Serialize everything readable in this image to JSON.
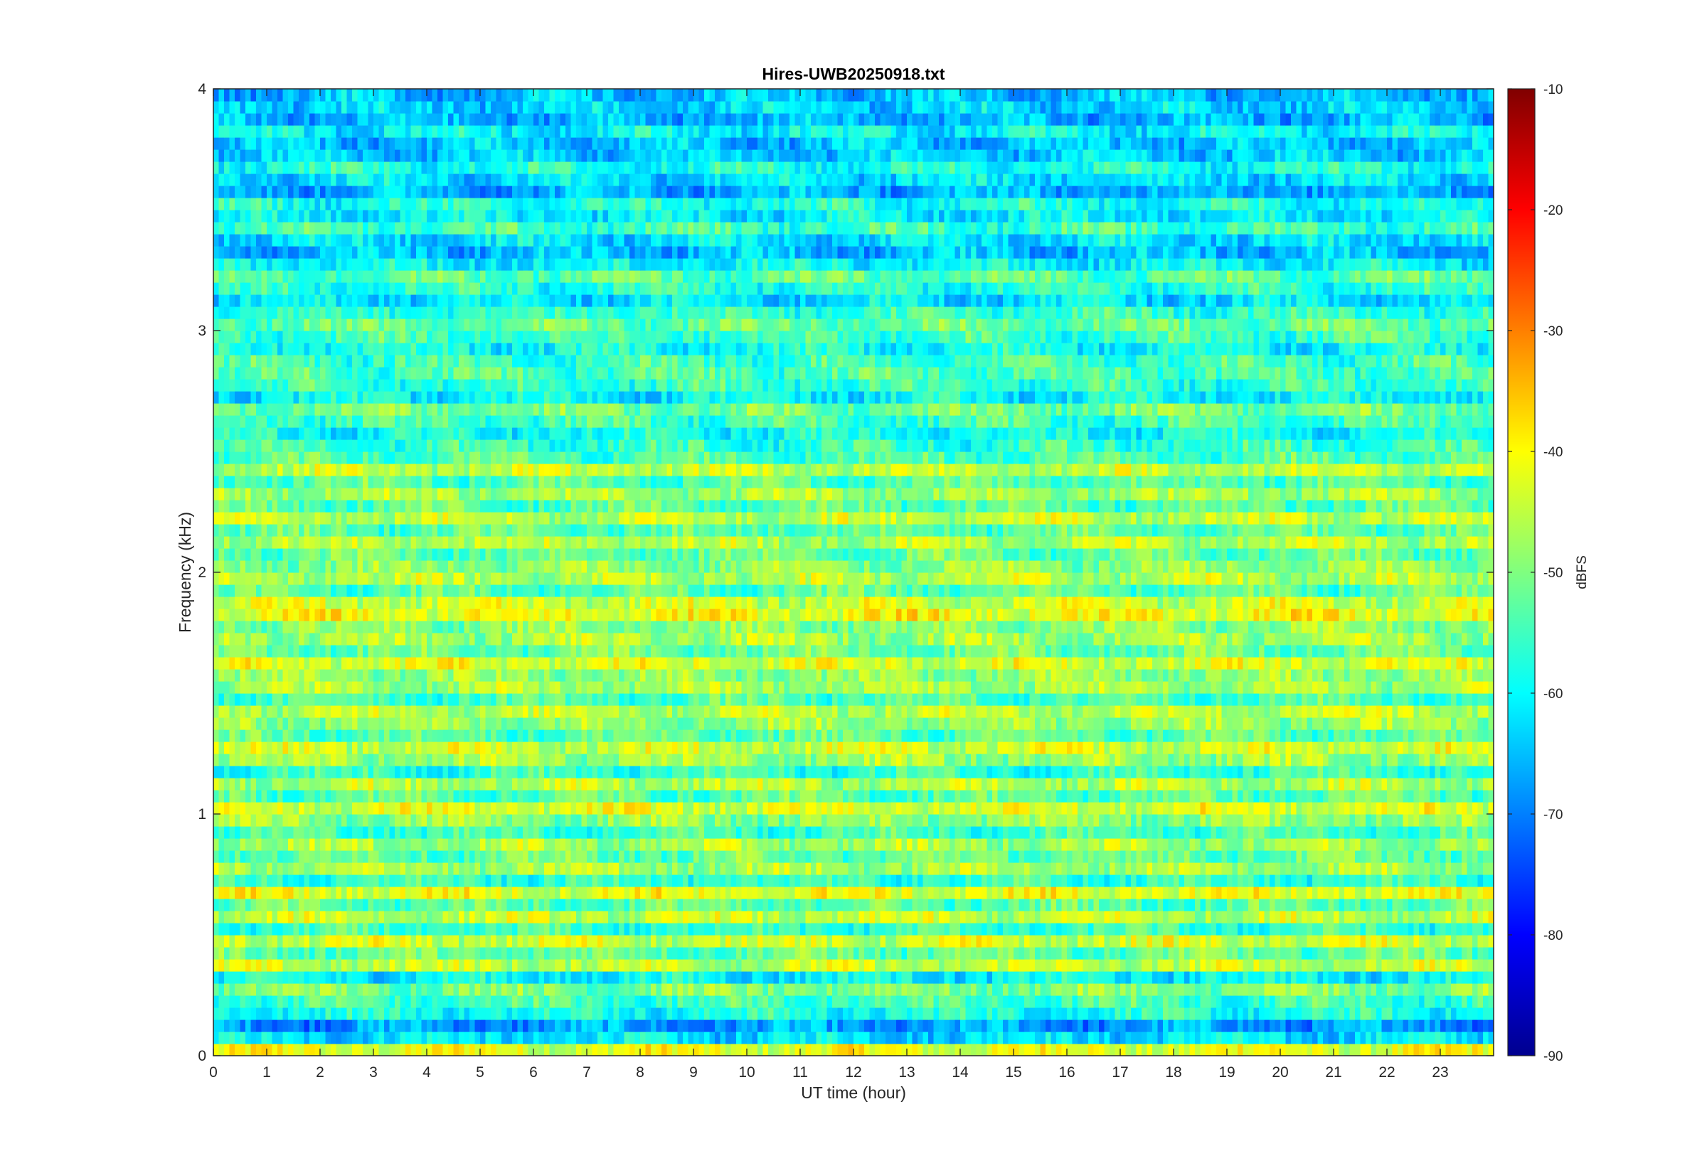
{
  "chart_data": {
    "type": "heatmap",
    "title": "Hires-UWB20250918.txt",
    "xlabel": "UT time (hour)",
    "ylabel": "Frequency (kHz)",
    "colorbar_label": "dBFS",
    "colormap": "jet",
    "xlim": [
      0,
      24
    ],
    "ylim": [
      0,
      4
    ],
    "clim": [
      -90,
      -10
    ],
    "x_ticks": [
      0,
      1,
      2,
      3,
      4,
      5,
      6,
      7,
      8,
      9,
      10,
      11,
      12,
      13,
      14,
      15,
      16,
      17,
      18,
      19,
      20,
      21,
      22,
      23
    ],
    "y_ticks": [
      0,
      1,
      2,
      3,
      4
    ],
    "colorbar_ticks": [
      -90,
      -80,
      -70,
      -60,
      -50,
      -40,
      -30,
      -20,
      -10
    ],
    "frequency_bins_khz": [
      0.025,
      0.075,
      0.125,
      0.175,
      0.225,
      0.275,
      0.325,
      0.375,
      0.425,
      0.475,
      0.525,
      0.575,
      0.625,
      0.675,
      0.725,
      0.775,
      0.825,
      0.875,
      0.925,
      0.975,
      1.025,
      1.075,
      1.125,
      1.175,
      1.225,
      1.275,
      1.325,
      1.375,
      1.425,
      1.475,
      1.525,
      1.575,
      1.625,
      1.675,
      1.725,
      1.775,
      1.825,
      1.875,
      1.925,
      1.975,
      2.025,
      2.075,
      2.125,
      2.175,
      2.225,
      2.275,
      2.325,
      2.375,
      2.425,
      2.475,
      2.525,
      2.575,
      2.625,
      2.675,
      2.725,
      2.775,
      2.825,
      2.875,
      2.925,
      2.975,
      3.025,
      3.075,
      3.125,
      3.175,
      3.225,
      3.275,
      3.325,
      3.375,
      3.425,
      3.475,
      3.525,
      3.575,
      3.625,
      3.675,
      3.725,
      3.775,
      3.825,
      3.875,
      3.925,
      3.975
    ],
    "band_mean_dbfs": [
      -42,
      -62,
      -68,
      -58,
      -55,
      -50,
      -60,
      -45,
      -52,
      -44,
      -56,
      -45,
      -53,
      -42,
      -56,
      -47,
      -52,
      -47,
      -55,
      -49,
      -43,
      -53,
      -46,
      -56,
      -48,
      -44,
      -53,
      -48,
      -45,
      -54,
      -47,
      -49,
      -43,
      -52,
      -47,
      -49,
      -41,
      -44,
      -53,
      -46,
      -49,
      -52,
      -46,
      -53,
      -45,
      -53,
      -47,
      -53,
      -45,
      -54,
      -56,
      -59,
      -55,
      -51,
      -60,
      -56,
      -54,
      -55,
      -59,
      -55,
      -52,
      -56,
      -62,
      -57,
      -53,
      -60,
      -65,
      -62,
      -55,
      -61,
      -58,
      -66,
      -62,
      -58,
      -64,
      -65,
      -60,
      -66,
      -63,
      -65
    ],
    "notes_visible": "Strong band near 0.05 kHz; peaks near -30 dBFS around 1.75–1.85 kHz between 2–6 h"
  }
}
